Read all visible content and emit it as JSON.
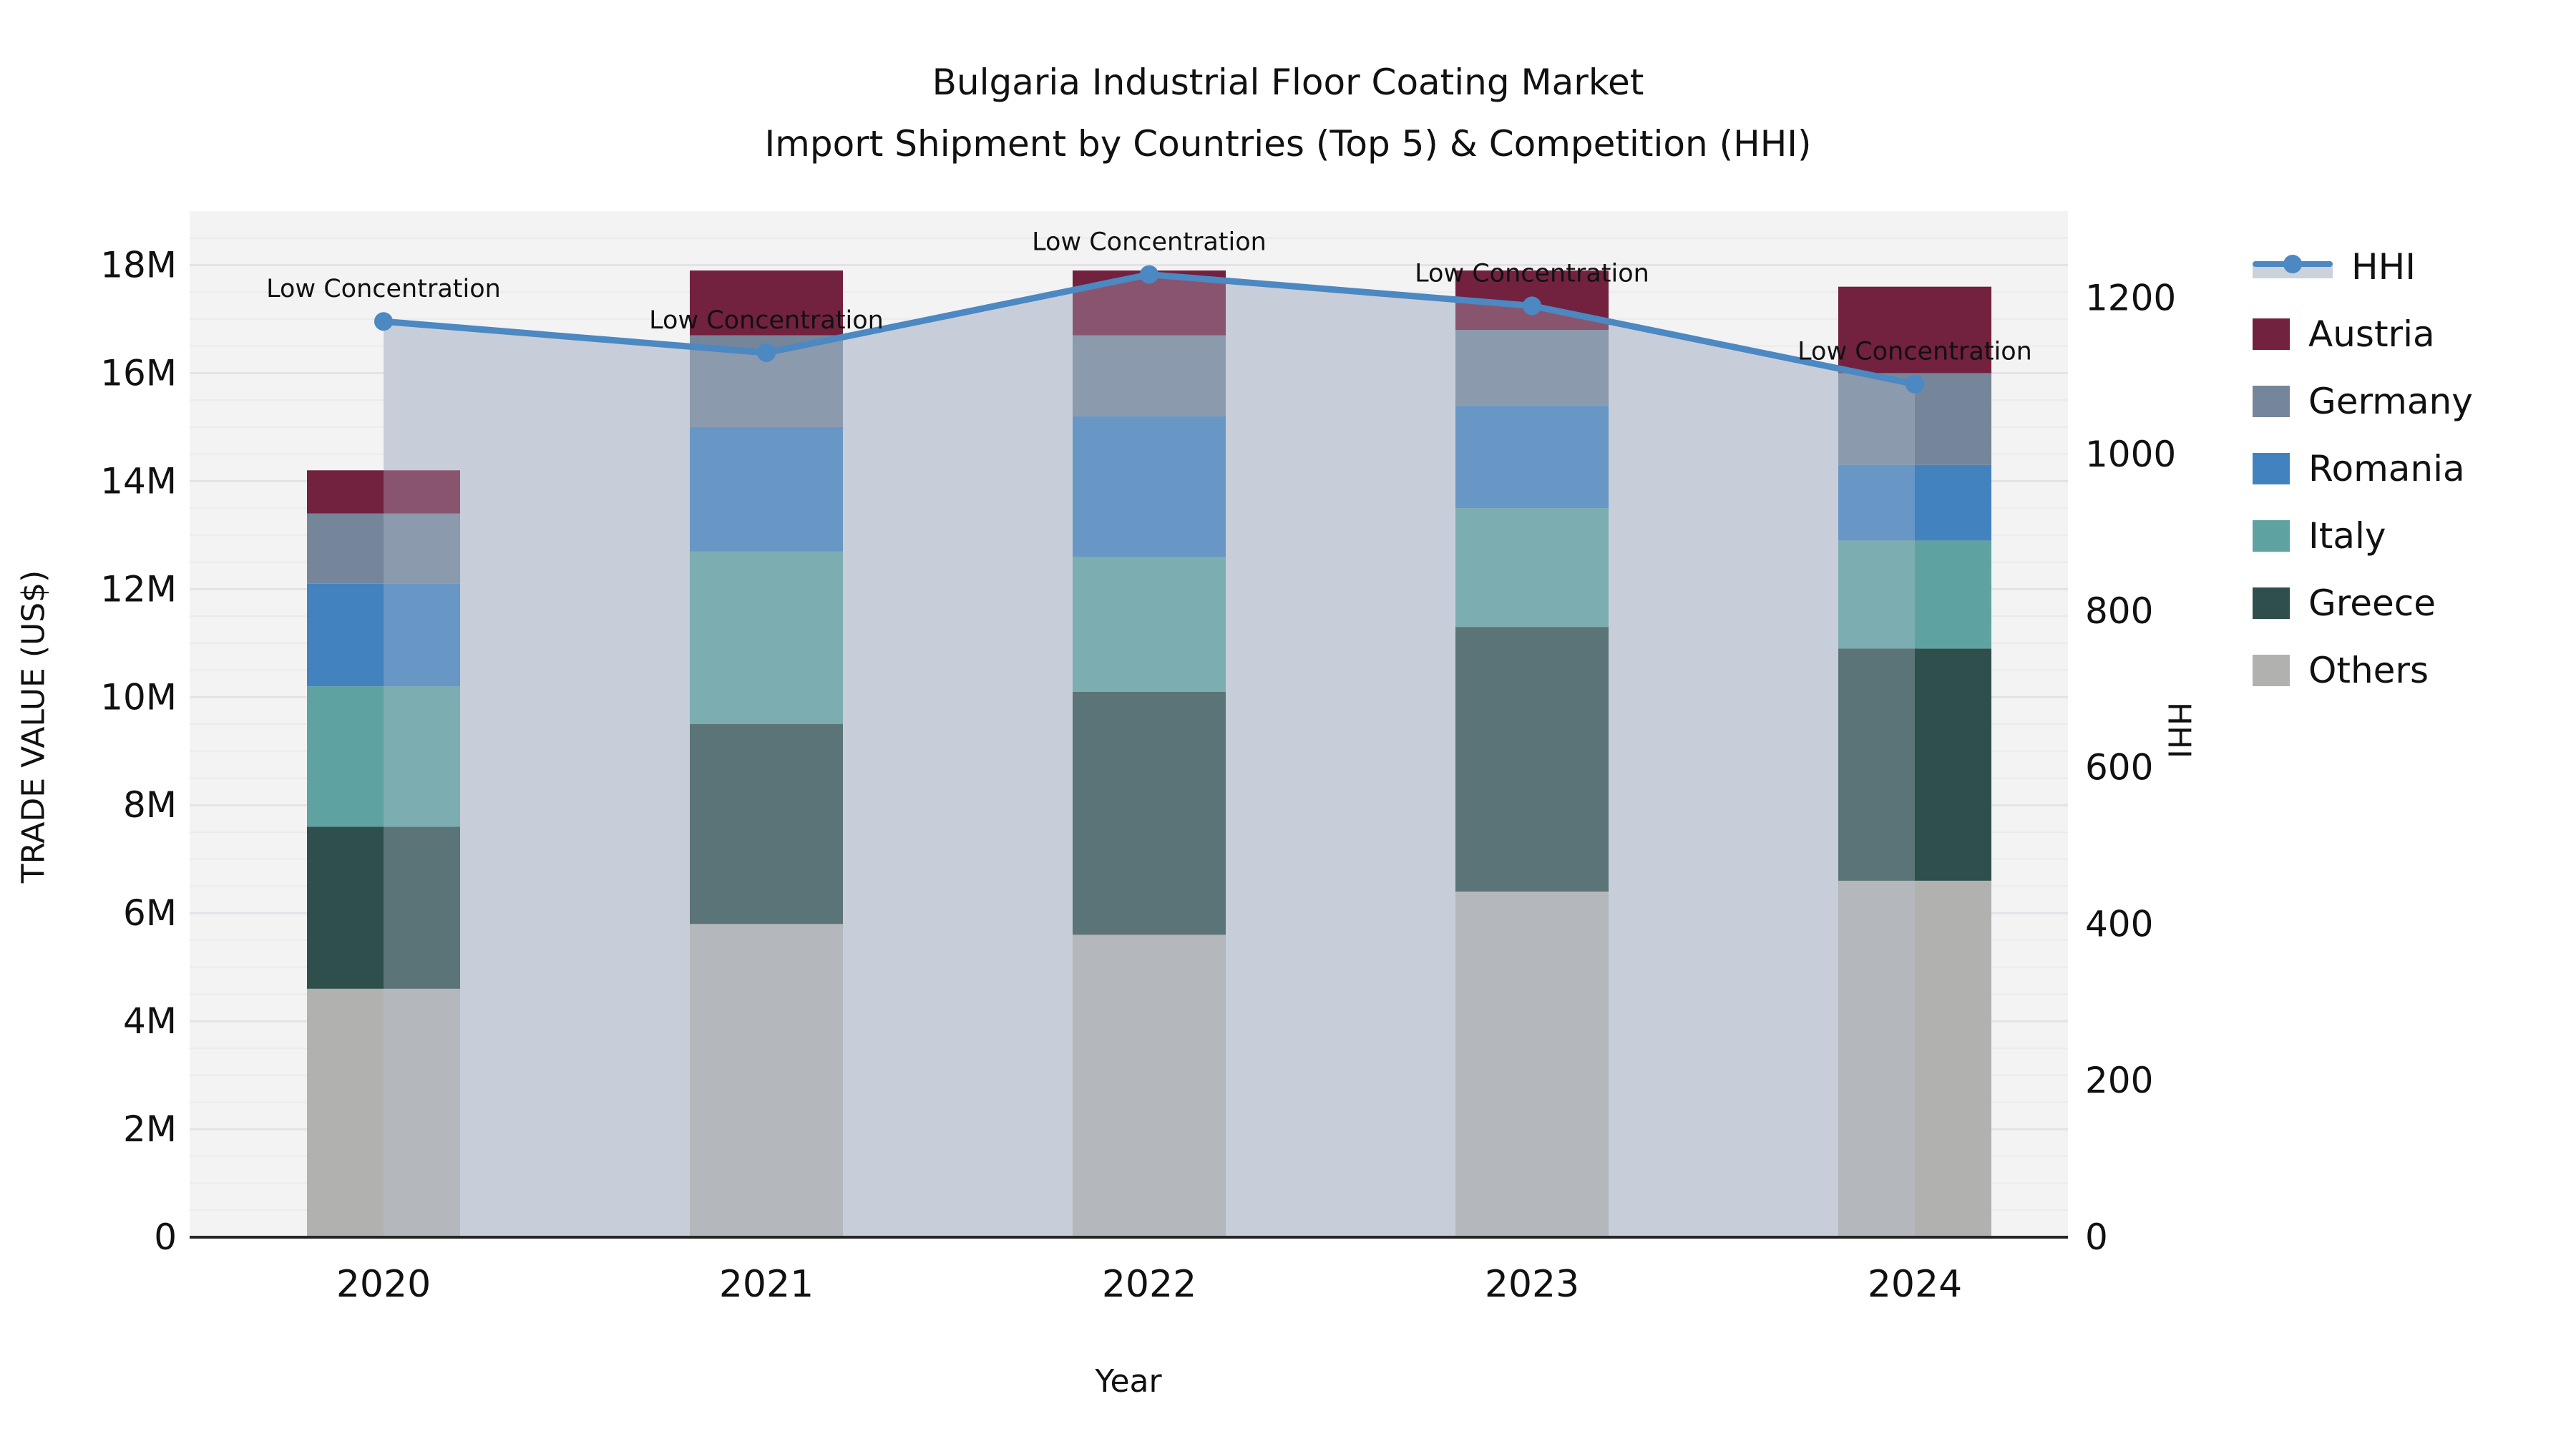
{
  "title": {
    "line1": "Bulgaria Industrial Floor Coating Market",
    "line2": "Import Shipment by Countries (Top 5) & Competition (HHI)"
  },
  "axes": {
    "y_left": {
      "label": "TRADE VALUE (US$)",
      "tick_labels": [
        "0",
        "2M",
        "4M",
        "6M",
        "8M",
        "10M",
        "12M",
        "14M",
        "16M",
        "18M"
      ],
      "tick_values": [
        0,
        2,
        4,
        6,
        8,
        10,
        12,
        14,
        16,
        18
      ],
      "range": [
        0,
        19
      ]
    },
    "y_right": {
      "label": "HHI",
      "tick_labels": [
        "0",
        "200",
        "400",
        "600",
        "800",
        "1000",
        "1200"
      ],
      "tick_values": [
        0,
        200,
        400,
        600,
        800,
        1000,
        1200
      ],
      "range": [
        0,
        1311
      ]
    },
    "x": {
      "label": "Year",
      "categories": [
        "2020",
        "2021",
        "2022",
        "2023",
        "2024"
      ]
    }
  },
  "legend": {
    "items": [
      {
        "label": "HHI",
        "type": "line",
        "color": "#4c88c2"
      },
      {
        "label": "Austria",
        "type": "swatch",
        "color": "#72213f"
      },
      {
        "label": "Germany",
        "type": "swatch",
        "color": "#75869a"
      },
      {
        "label": "Romania",
        "type": "swatch",
        "color": "#4282bf"
      },
      {
        "label": "Italy",
        "type": "swatch",
        "color": "#5ea3a1"
      },
      {
        "label": "Greece",
        "type": "swatch",
        "color": "#2e4f4c"
      },
      {
        "label": "Others",
        "type": "swatch",
        "color": "#b1b2b0"
      }
    ]
  },
  "annotation_label": "Low Concentration",
  "colors": {
    "plot_background": "#f3f3f4",
    "grid_minor": "#ebebee",
    "grid_major": "#e3e3e7",
    "area_fill": "#cdd3de",
    "area_overlay": "rgba(186,196,213,0.32)",
    "hhi_line": "#4c88c2",
    "baseline": "#262626",
    "text": "#111111"
  },
  "chart_data": {
    "type": "bar+line",
    "title": "Bulgaria Industrial Floor Coating Market — Import Shipment by Countries (Top 5) & Competition (HHI)",
    "categories": [
      "2020",
      "2021",
      "2022",
      "2023",
      "2024"
    ],
    "bar_unit": "M US$ (trade value)",
    "stack_order_bottom_to_top": [
      "Others",
      "Greece",
      "Italy",
      "Romania",
      "Germany",
      "Austria"
    ],
    "series": [
      {
        "name": "Others",
        "color": "#b1b2b0",
        "values": [
          4.6,
          5.8,
          5.6,
          6.4,
          6.6
        ]
      },
      {
        "name": "Greece",
        "color": "#2e4f4c",
        "values": [
          3.0,
          3.7,
          4.5,
          4.9,
          4.3
        ]
      },
      {
        "name": "Italy",
        "color": "#5ea3a1",
        "values": [
          2.6,
          3.2,
          2.5,
          2.2,
          2.0
        ]
      },
      {
        "name": "Romania",
        "color": "#4282bf",
        "values": [
          1.9,
          2.3,
          2.6,
          1.9,
          1.4
        ]
      },
      {
        "name": "Germany",
        "color": "#75869a",
        "values": [
          1.3,
          1.7,
          1.5,
          1.4,
          1.7
        ]
      },
      {
        "name": "Austria",
        "color": "#72213f",
        "values": [
          0.8,
          1.2,
          1.2,
          1.1,
          1.6
        ]
      }
    ],
    "bar_totals": [
      14.2,
      17.9,
      17.9,
      17.9,
      17.6
    ],
    "line": {
      "name": "HHI",
      "color": "#4c88c2",
      "values": [
        1170,
        1130,
        1230,
        1190,
        1090
      ],
      "point_annotations": [
        "Low Concentration",
        "Low Concentration",
        "Low Concentration",
        "Low Concentration",
        "Low Concentration"
      ]
    },
    "xlabel": "Year",
    "ylabel_left": "TRADE VALUE (US$)",
    "ylabel_right": "HHI",
    "ylim_left": [
      0,
      19000000
    ],
    "ylim_right": [
      0,
      1311
    ],
    "grid": true,
    "legend_position": "right"
  }
}
